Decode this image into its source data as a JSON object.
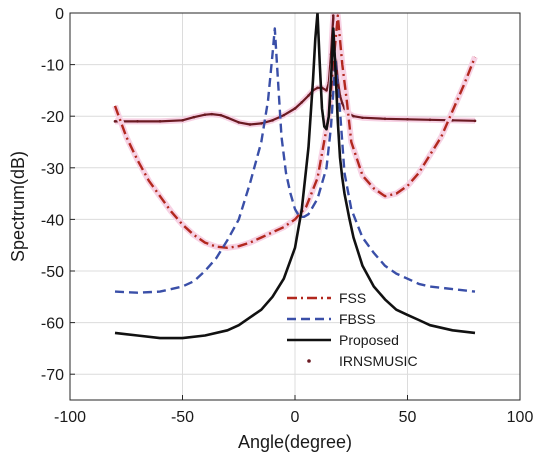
{
  "chart_data": {
    "type": "line",
    "title": "",
    "xlabel": "Angle(degree)",
    "ylabel": "Spectrum(dB)",
    "xlim": [
      -100,
      100
    ],
    "ylim": [
      -75,
      0
    ],
    "xticks": [
      -100,
      -50,
      0,
      50,
      100
    ],
    "yticks": [
      0,
      -10,
      -20,
      -30,
      -40,
      -50,
      -60,
      -70
    ],
    "grid": true,
    "legend_position": "bottom-right",
    "series": [
      {
        "name": "FSS",
        "color": "#b2281e",
        "style": "dashdot",
        "x": [
          -80,
          -75,
          -70,
          -65,
          -60,
          -55,
          -50,
          -45,
          -40,
          -35,
          -30,
          -25,
          -20,
          -15,
          -10,
          -5,
          0,
          5,
          10,
          15,
          17,
          19,
          21,
          23,
          25,
          30,
          35,
          40,
          45,
          50,
          55,
          60,
          65,
          70,
          75,
          80
        ],
        "y": [
          -18,
          -24,
          -28.5,
          -32.5,
          -35.5,
          -38.5,
          -41,
          -43,
          -44.5,
          -45.3,
          -45.5,
          -45.2,
          -44.5,
          -43.5,
          -42.5,
          -41.5,
          -40,
          -37.5,
          -32,
          -20,
          -10,
          -0.5,
          -10,
          -17,
          -25,
          -31.5,
          -34,
          -35.5,
          -35,
          -33.5,
          -31,
          -27.5,
          -24,
          -19,
          -14,
          -8.5
        ]
      },
      {
        "name": "FBSS",
        "color": "#3a4fa8",
        "style": "dashed",
        "x": [
          -80,
          -70,
          -60,
          -50,
          -45,
          -40,
          -35,
          -30,
          -25,
          -20,
          -15,
          -12,
          -10,
          -9,
          -8,
          -6,
          -4,
          -2,
          0,
          2,
          4,
          6,
          8,
          10,
          12,
          14,
          16,
          18,
          20,
          22,
          25,
          30,
          35,
          40,
          45,
          50,
          55,
          60,
          70,
          80
        ],
        "y": [
          -54,
          -54.2,
          -54,
          -53,
          -52,
          -50,
          -47.5,
          -44,
          -40,
          -33,
          -25,
          -17,
          -8,
          -3,
          -10,
          -24,
          -31,
          -35,
          -38,
          -39.5,
          -39.5,
          -39,
          -37.5,
          -36,
          -33,
          -30,
          -22,
          -9,
          -19,
          -31,
          -38,
          -43.5,
          -46.5,
          -49,
          -50.5,
          -51.5,
          -52.5,
          -53,
          -53.5,
          -54
        ]
      },
      {
        "name": "Proposed",
        "color": "#111111",
        "style": "solid",
        "x": [
          -80,
          -70,
          -60,
          -50,
          -40,
          -30,
          -25,
          -20,
          -15,
          -10,
          -5,
          0,
          3,
          6,
          8,
          9,
          10,
          11,
          12,
          13,
          14,
          15,
          16,
          17,
          18,
          19,
          20,
          21,
          22,
          24,
          26,
          30,
          35,
          40,
          45,
          50,
          55,
          60,
          70,
          80
        ],
        "y": [
          -62,
          -62.5,
          -63,
          -63,
          -62.5,
          -61.5,
          -60.5,
          -59,
          -57.5,
          -55,
          -51.5,
          -45.5,
          -38,
          -26,
          -13,
          -5,
          0,
          -10,
          -18.5,
          -22,
          -22.5,
          -20,
          -13,
          -3,
          -11,
          -21,
          -28,
          -32,
          -35,
          -39.5,
          -43.5,
          -49,
          -53,
          -55.5,
          -57.5,
          -58.5,
          -59.5,
          -60.5,
          -61.5,
          -62
        ]
      },
      {
        "name": "IRNSMUSIC",
        "color": "#6b1a22",
        "style": "dotted-marker",
        "x": [
          -80,
          -70,
          -60,
          -50,
          -45,
          -40,
          -37,
          -33,
          -30,
          -25,
          -20,
          -15,
          -10,
          -5,
          0,
          3,
          6,
          8,
          10,
          12,
          14,
          15,
          16,
          17,
          18,
          19,
          20,
          21,
          22,
          24,
          26,
          30,
          40,
          50,
          60,
          70,
          80
        ],
        "y": [
          -21,
          -21,
          -21,
          -20.8,
          -20.2,
          -19.7,
          -19.6,
          -19.8,
          -20.3,
          -21.2,
          -21.6,
          -21.4,
          -20.8,
          -19.8,
          -18.5,
          -17.3,
          -16,
          -15,
          -14.5,
          -14.5,
          -15,
          -13.5,
          -8,
          -0.5,
          -8,
          -13,
          -16,
          -17.5,
          -18.5,
          -19.5,
          -20,
          -20.3,
          -20.5,
          -20.6,
          -20.7,
          -20.8,
          -20.9
        ]
      }
    ]
  }
}
